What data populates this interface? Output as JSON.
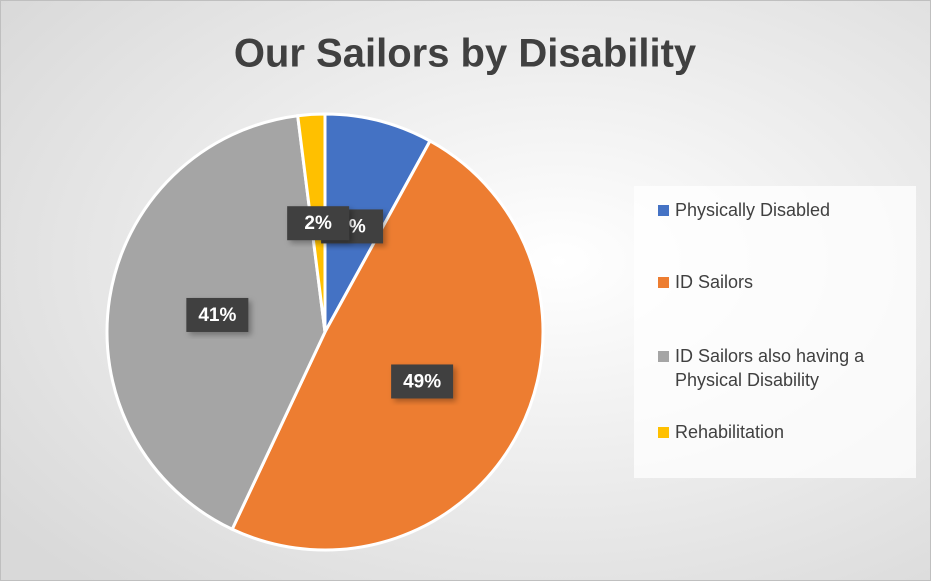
{
  "chart_data": {
    "type": "pie",
    "title": "Our Sailors by Disability",
    "categories": [
      "Physically Disabled",
      "ID Sailors",
      "ID Sailors also having a Physical Disability",
      "Rehabilitation"
    ],
    "values": [
      8,
      49,
      41,
      2
    ],
    "value_labels": [
      "8%",
      "49%",
      "41%",
      "2%"
    ],
    "colors": [
      "#4472c4",
      "#ed7d31",
      "#a5a5a5",
      "#ffc000"
    ],
    "legend": "right"
  }
}
